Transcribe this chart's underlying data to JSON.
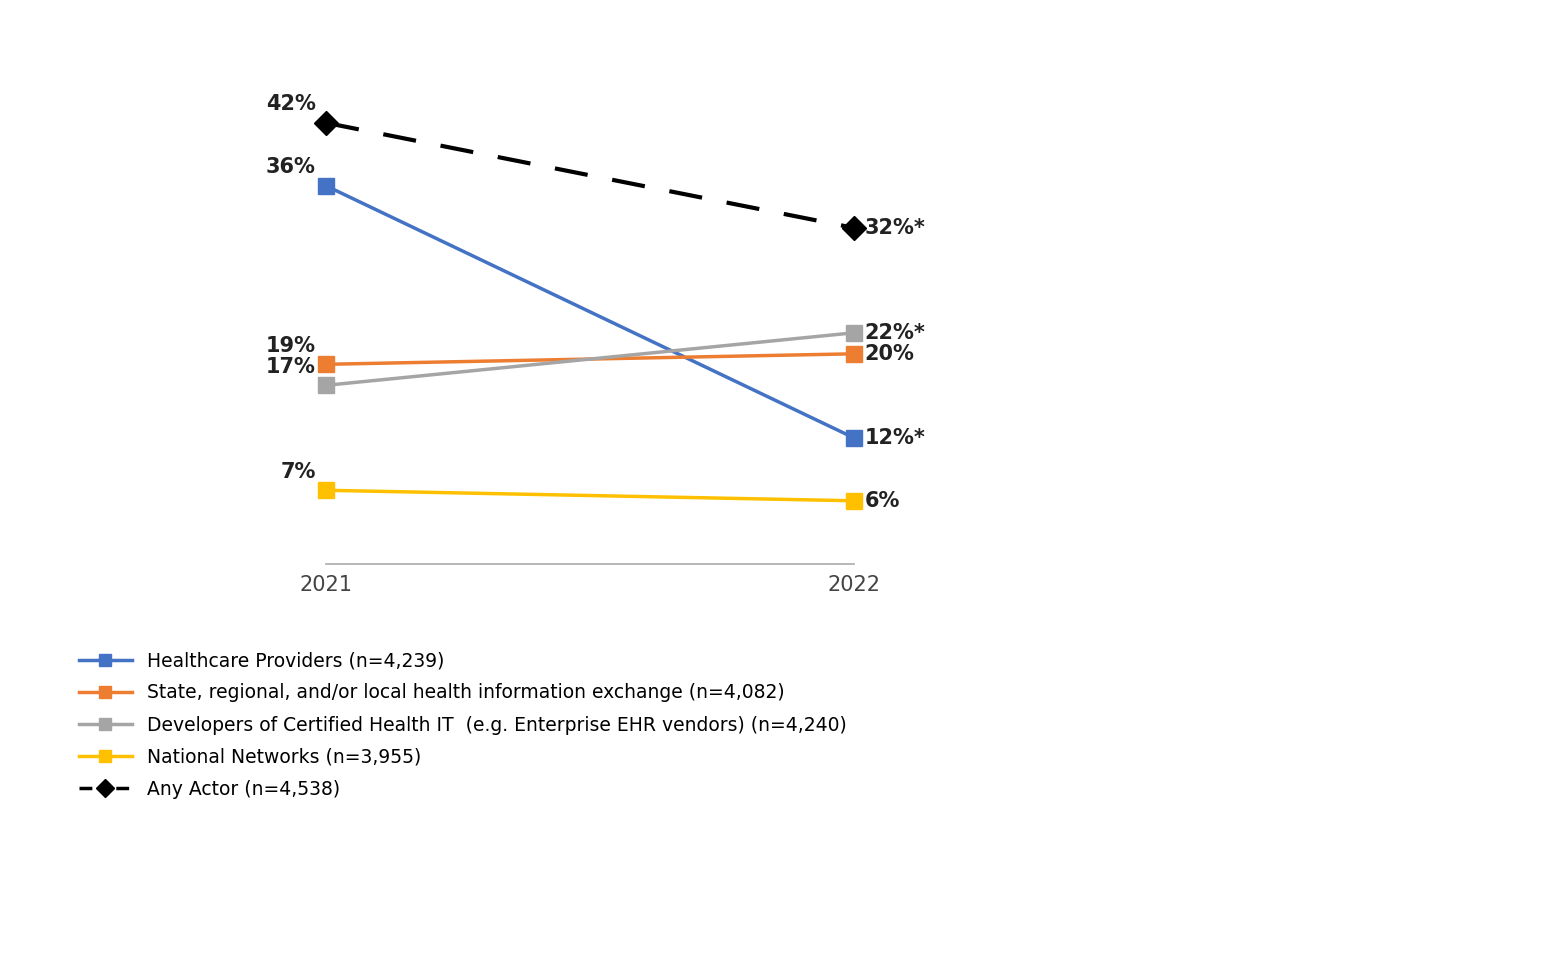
{
  "years": [
    0,
    1
  ],
  "year_labels": [
    "2021",
    "2022"
  ],
  "series": [
    {
      "name": "Healthcare Providers (n=4,239)",
      "values": [
        36,
        12
      ],
      "color": "#4472C4",
      "linestyle": "solid",
      "marker": "s",
      "label_left": "36%",
      "label_right": "12%*",
      "label_left_va": "bottom",
      "label_right_va": "center"
    },
    {
      "name": "State, regional, and/or local health information exchange (n=4,082)",
      "values": [
        19,
        20
      ],
      "color": "#ED7D31",
      "linestyle": "solid",
      "marker": "s",
      "label_left": "19%",
      "label_right": "20%",
      "label_left_va": "bottom",
      "label_right_va": "center"
    },
    {
      "name": "Developers of Certified Health IT  (e.g. Enterprise EHR vendors) (n=4,240)",
      "values": [
        17,
        22
      ],
      "color": "#A5A5A5",
      "linestyle": "solid",
      "marker": "s",
      "label_left": "17%",
      "label_right": "22%*",
      "label_left_va": "top",
      "label_right_va": "center"
    },
    {
      "name": "National Networks (n=3,955)",
      "values": [
        7,
        6
      ],
      "color": "#FFC000",
      "linestyle": "solid",
      "marker": "s",
      "label_left": "7%",
      "label_right": "6%",
      "label_left_va": "bottom",
      "label_right_va": "bottom"
    },
    {
      "name": "Any Actor (n=4,538)",
      "values": [
        42,
        32
      ],
      "color": "#000000",
      "linestyle": "dashed",
      "marker": "D",
      "label_left": "42%",
      "label_right": "32%*",
      "label_left_va": "bottom",
      "label_right_va": "center"
    }
  ],
  "ylim": [
    0,
    50
  ],
  "background_color": "#FFFFFF",
  "legend_entries": [
    "Healthcare Providers (n=4,239)",
    "State, regional, and/or local health information exchange (n=4,082)",
    "Developers of Certified Health IT  (e.g. Enterprise EHR vendors) (n=4,240)",
    "National Networks (n=3,955)",
    "Any Actor (n=4,538)"
  ],
  "legend_colors": [
    "#4472C4",
    "#ED7D31",
    "#A5A5A5",
    "#FFC000",
    "#000000"
  ],
  "legend_linestyles": [
    "solid",
    "solid",
    "solid",
    "solid",
    "dashed"
  ],
  "legend_markers": [
    "s",
    "s",
    "s",
    "s",
    "D"
  ]
}
